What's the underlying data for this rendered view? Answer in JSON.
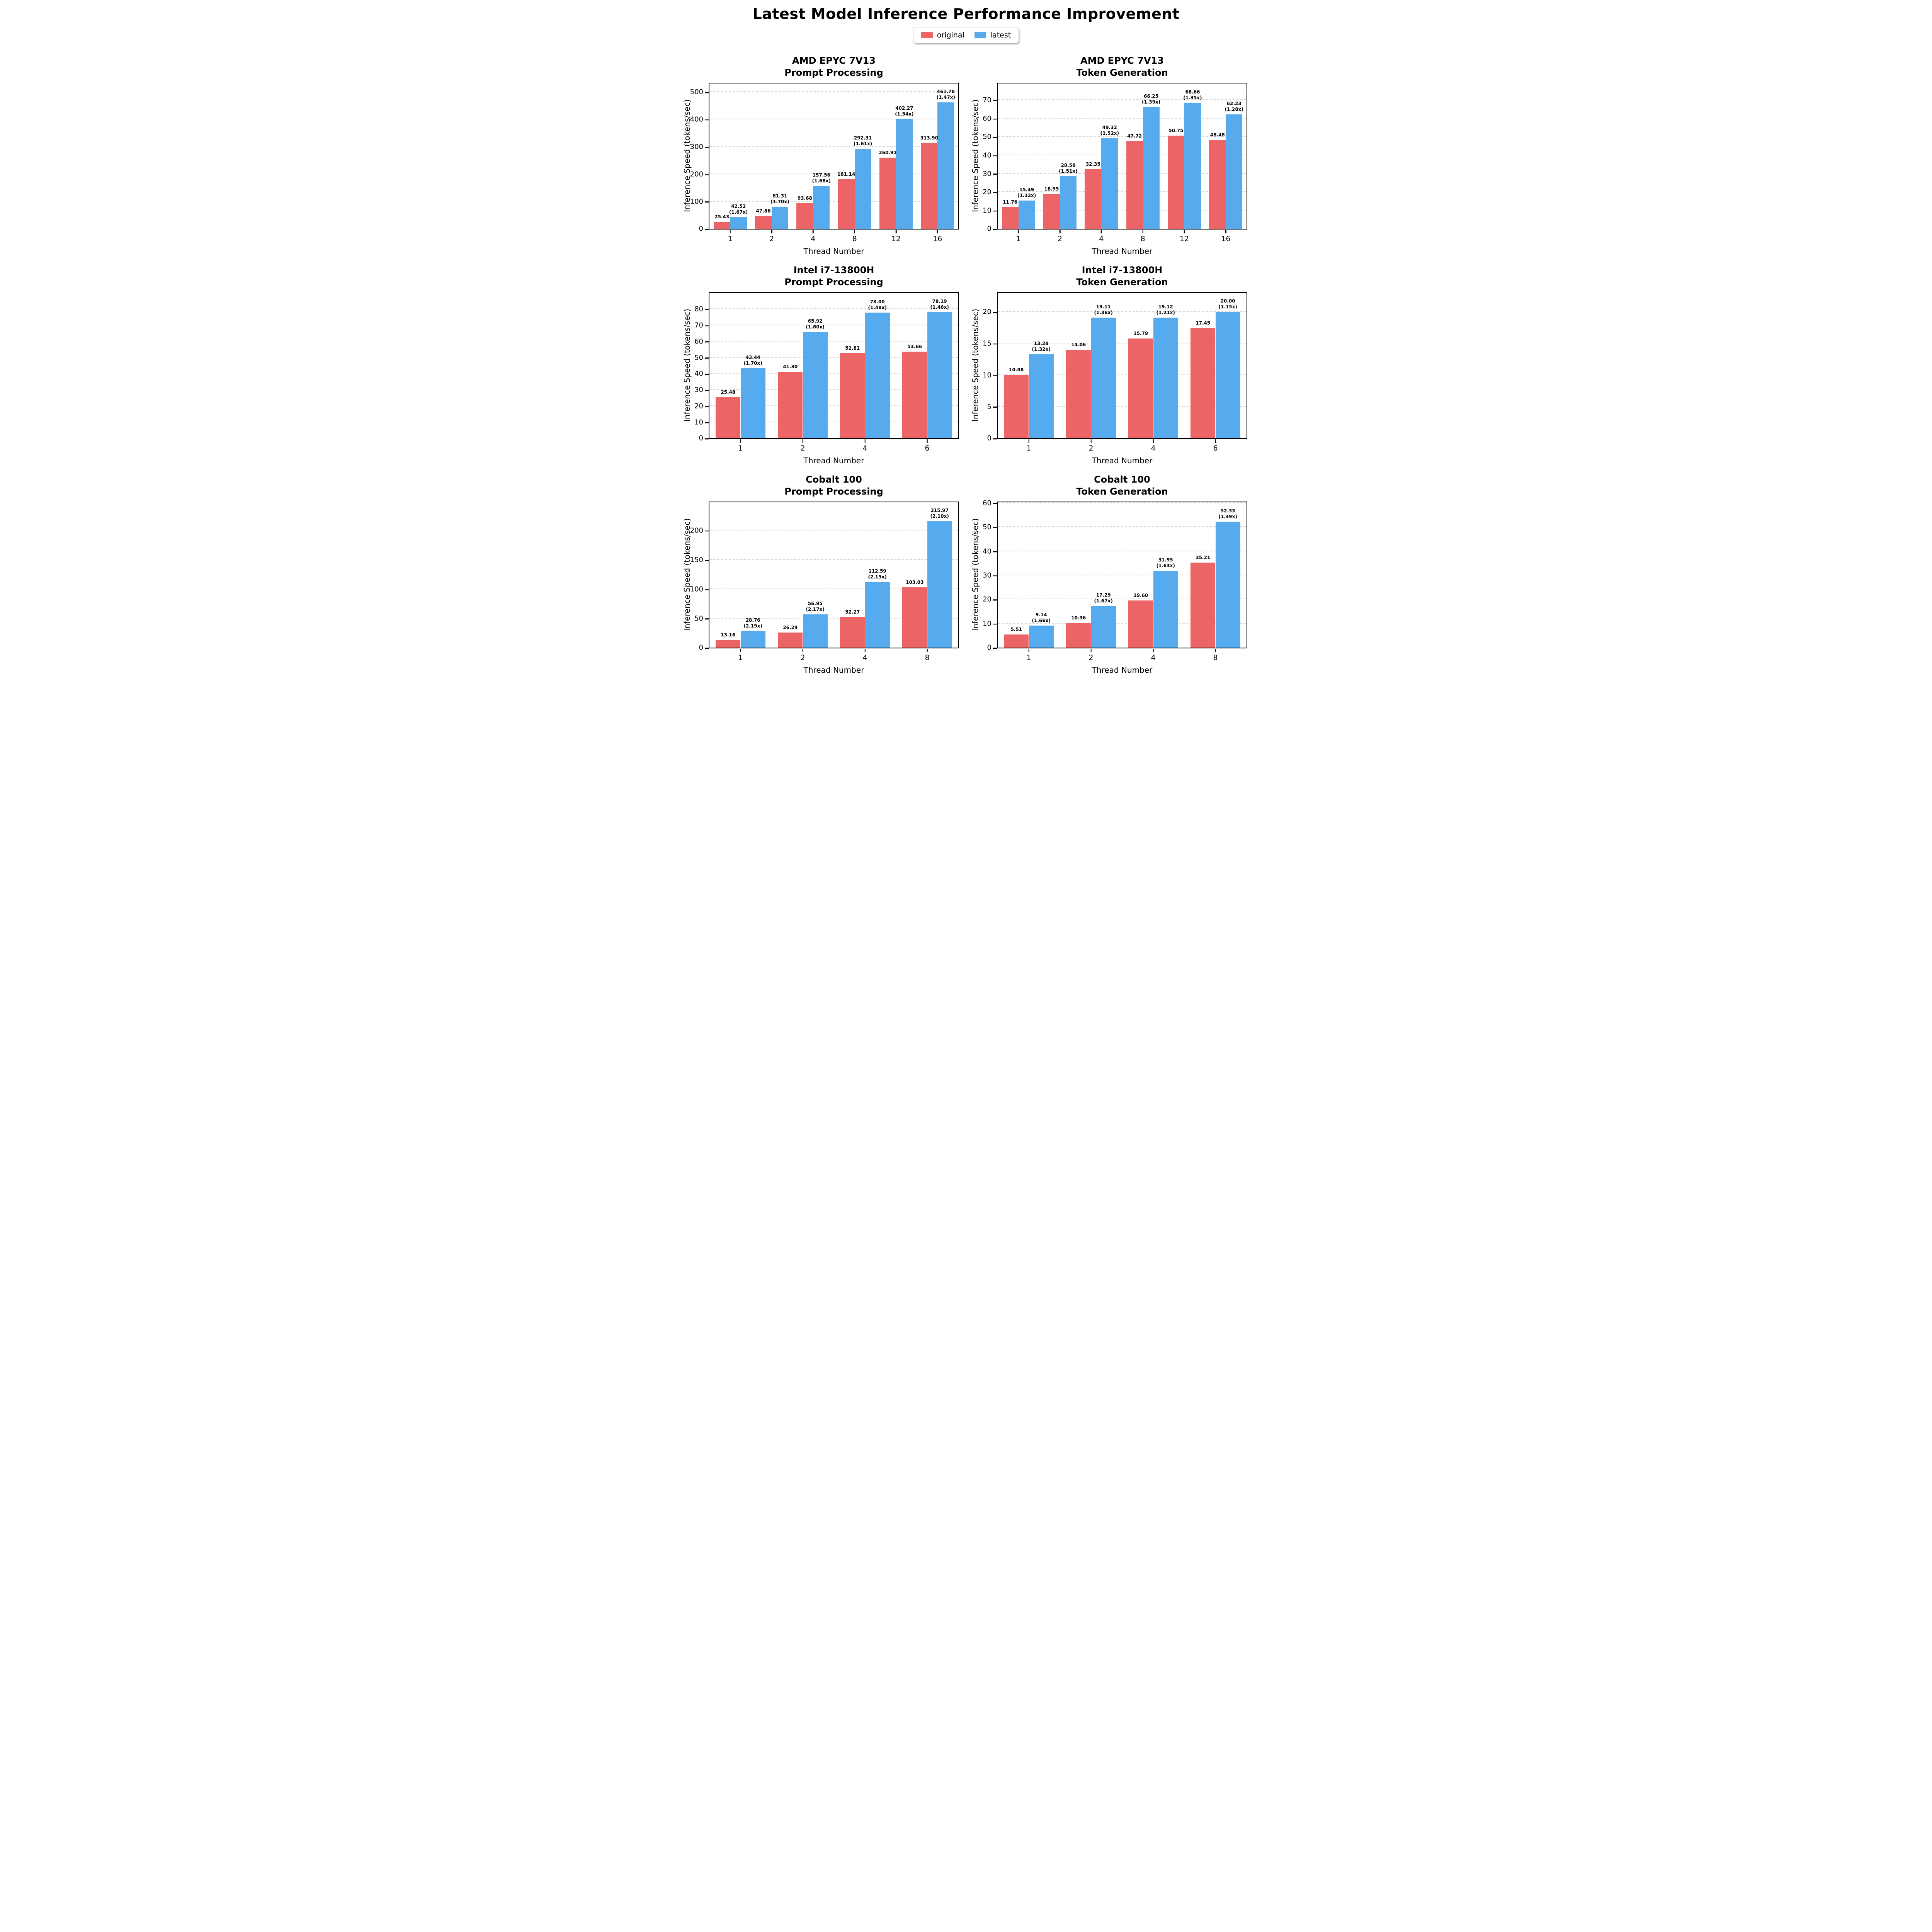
{
  "page": {
    "title": "Latest Model Inference Performance Improvement",
    "legend": {
      "items": [
        {
          "label": "original",
          "color": "#ED6466"
        },
        {
          "label": "latest",
          "color": "#55ABEE"
        }
      ]
    }
  },
  "colors": {
    "original": "#ED6466",
    "latest": "#55ABEE",
    "grid": "#d9d9d9",
    "axis": "#000000"
  },
  "chart_data": [
    {
      "type": "bar",
      "title_line1": "AMD EPYC 7V13",
      "title_line2": "Prompt Processing",
      "xlabel": "Thread Number",
      "ylabel": "Inference Speed (tokens/sec)",
      "categories": [
        "1",
        "2",
        "4",
        "8",
        "12",
        "16"
      ],
      "series": [
        {
          "name": "original",
          "color": "#ED6466",
          "values": [
            25.43,
            47.86,
            93.68,
            181.14,
            260.91,
            313.9
          ]
        },
        {
          "name": "latest",
          "color": "#55ABEE",
          "values": [
            42.52,
            81.31,
            157.56,
            292.31,
            402.27,
            461.78
          ],
          "speedups": [
            "(1.67x)",
            "(1.70x)",
            "(1.68x)",
            "(1.61x)",
            "(1.54x)",
            "(1.47x)"
          ]
        }
      ],
      "yticks": [
        0,
        100,
        200,
        300,
        400,
        500
      ],
      "ylim": [
        0,
        531
      ],
      "grid": true,
      "legend_position": "figure-top"
    },
    {
      "type": "bar",
      "title_line1": "AMD EPYC 7V13",
      "title_line2": "Token Generation",
      "xlabel": "Thread Number",
      "ylabel": "Inference Speed (tokens/sec)",
      "categories": [
        "1",
        "2",
        "4",
        "8",
        "12",
        "16"
      ],
      "series": [
        {
          "name": "original",
          "color": "#ED6466",
          "values": [
            11.76,
            18.95,
            32.35,
            47.72,
            50.75,
            48.48
          ]
        },
        {
          "name": "latest",
          "color": "#55ABEE",
          "values": [
            15.49,
            28.58,
            49.32,
            66.25,
            68.66,
            62.23
          ],
          "speedups": [
            "(1.32x)",
            "(1.51x)",
            "(1.52x)",
            "(1.39x)",
            "(1.35x)",
            "(1.28x)"
          ]
        }
      ],
      "yticks": [
        0,
        10,
        20,
        30,
        40,
        50,
        60,
        70
      ],
      "ylim": [
        0,
        79
      ],
      "grid": true,
      "legend_position": "figure-top"
    },
    {
      "type": "bar",
      "title_line1": "Intel i7-13800H",
      "title_line2": "Prompt Processing",
      "xlabel": "Thread Number",
      "ylabel": "Inference Speed (tokens/sec)",
      "categories": [
        "1",
        "2",
        "4",
        "6"
      ],
      "series": [
        {
          "name": "original",
          "color": "#ED6466",
          "values": [
            25.48,
            41.3,
            52.81,
            53.66
          ]
        },
        {
          "name": "latest",
          "color": "#55ABEE",
          "values": [
            43.44,
            65.92,
            78.0,
            78.19
          ],
          "speedups": [
            "(1.70x)",
            "(1.60x)",
            "(1.48x)",
            "(1.46x)"
          ]
        }
      ],
      "yticks": [
        0,
        10,
        20,
        30,
        40,
        50,
        60,
        70,
        80
      ],
      "ylim": [
        0,
        90
      ],
      "grid": true,
      "legend_position": "figure-top"
    },
    {
      "type": "bar",
      "title_line1": "Intel i7-13800H",
      "title_line2": "Token Generation",
      "xlabel": "Thread Number",
      "ylabel": "Inference Speed (tokens/sec)",
      "categories": [
        "1",
        "2",
        "4",
        "6"
      ],
      "series": [
        {
          "name": "original",
          "color": "#ED6466",
          "values": [
            10.08,
            14.06,
            15.79,
            17.45
          ]
        },
        {
          "name": "latest",
          "color": "#55ABEE",
          "values": [
            13.28,
            19.11,
            19.12,
            20.0
          ],
          "speedups": [
            "(1.32x)",
            "(1.36x)",
            "(1.21x)",
            "(1.15x)"
          ]
        }
      ],
      "yticks": [
        0,
        5,
        10,
        15,
        20
      ],
      "ylim": [
        0,
        23
      ],
      "grid": true,
      "legend_position": "figure-top"
    },
    {
      "type": "bar",
      "title_line1": "Cobalt 100",
      "title_line2": "Prompt Processing",
      "xlabel": "Thread Number",
      "ylabel": "Inference Speed (tokens/sec)",
      "categories": [
        "1",
        "2",
        "4",
        "8"
      ],
      "series": [
        {
          "name": "original",
          "color": "#ED6466",
          "values": [
            13.16,
            26.29,
            52.27,
            103.03
          ]
        },
        {
          "name": "latest",
          "color": "#55ABEE",
          "values": [
            28.76,
            56.95,
            112.59,
            215.97
          ],
          "speedups": [
            "(2.19x)",
            "(2.17x)",
            "(2.15x)",
            "(2.10x)"
          ]
        }
      ],
      "yticks": [
        0,
        50,
        100,
        150,
        200
      ],
      "ylim": [
        0,
        248
      ],
      "grid": true,
      "legend_position": "figure-top"
    },
    {
      "type": "bar",
      "title_line1": "Cobalt 100",
      "title_line2": "Token Generation",
      "xlabel": "Thread Number",
      "ylabel": "Inference Speed (tokens/sec)",
      "categories": [
        "1",
        "2",
        "4",
        "8"
      ],
      "series": [
        {
          "name": "original",
          "color": "#ED6466",
          "values": [
            5.51,
            10.36,
            19.6,
            35.21
          ]
        },
        {
          "name": "latest",
          "color": "#55ABEE",
          "values": [
            9.14,
            17.29,
            31.95,
            52.33
          ],
          "speedups": [
            "(1.66x)",
            "(1.67x)",
            "(1.63x)",
            "(1.49x)"
          ]
        }
      ],
      "yticks": [
        0,
        10,
        20,
        30,
        40,
        50,
        60
      ],
      "ylim": [
        0,
        60.2
      ],
      "grid": true,
      "legend_position": "figure-top"
    }
  ]
}
